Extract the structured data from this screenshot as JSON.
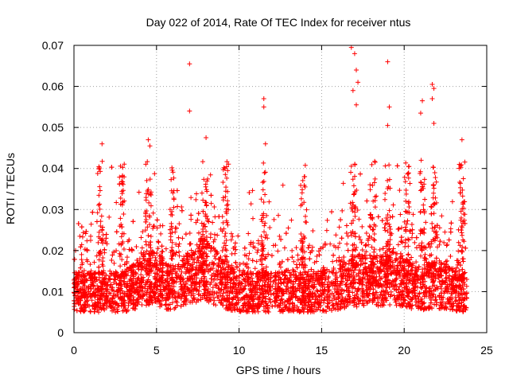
{
  "chart_data": {
    "type": "scatter",
    "title": "Day 022 of 2014, Rate Of TEC Index for receiver ntus",
    "xlabel": "GPS time / hours",
    "ylabel": "ROTI / TECUs",
    "xlim": [
      0,
      25
    ],
    "ylim": [
      0,
      0.07
    ],
    "xticks": [
      0,
      5,
      10,
      15,
      20,
      25
    ],
    "xtick_labels": [
      "0",
      "5",
      "10",
      "15",
      "20",
      "25"
    ],
    "yticks": [
      0,
      0.01,
      0.02,
      0.03,
      0.04,
      0.05,
      0.06,
      0.07
    ],
    "ytick_labels": [
      "0",
      "0.01",
      "0.02",
      "0.03",
      "0.04",
      "0.05",
      "0.06",
      "0.07"
    ],
    "grid": true,
    "marker": "plus",
    "color": "#ff0000",
    "series": [
      {
        "name": "ROTI",
        "x_range": [
          0,
          23.8
        ],
        "typical_range": [
          0.005,
          0.03
        ],
        "peaks": [
          {
            "x": 7.0,
            "y": 0.0655
          },
          {
            "x": 7.0,
            "y": 0.054
          },
          {
            "x": 11.5,
            "y": 0.057
          },
          {
            "x": 11.5,
            "y": 0.055
          },
          {
            "x": 11.6,
            "y": 0.046
          },
          {
            "x": 16.8,
            "y": 0.0695
          },
          {
            "x": 17.0,
            "y": 0.068
          },
          {
            "x": 17.1,
            "y": 0.064
          },
          {
            "x": 17.2,
            "y": 0.061
          },
          {
            "x": 16.9,
            "y": 0.059
          },
          {
            "x": 17.1,
            "y": 0.0555
          },
          {
            "x": 19.0,
            "y": 0.066
          },
          {
            "x": 19.1,
            "y": 0.055
          },
          {
            "x": 19.0,
            "y": 0.0505
          },
          {
            "x": 21.7,
            "y": 0.0605
          },
          {
            "x": 21.8,
            "y": 0.0595
          },
          {
            "x": 21.7,
            "y": 0.057
          },
          {
            "x": 21.1,
            "y": 0.0565
          },
          {
            "x": 21.0,
            "y": 0.0535
          },
          {
            "x": 21.8,
            "y": 0.051
          },
          {
            "x": 4.5,
            "y": 0.047
          },
          {
            "x": 4.6,
            "y": 0.0455
          },
          {
            "x": 1.7,
            "y": 0.046
          },
          {
            "x": 8.0,
            "y": 0.0475
          },
          {
            "x": 23.5,
            "y": 0.047
          }
        ]
      }
    ]
  }
}
